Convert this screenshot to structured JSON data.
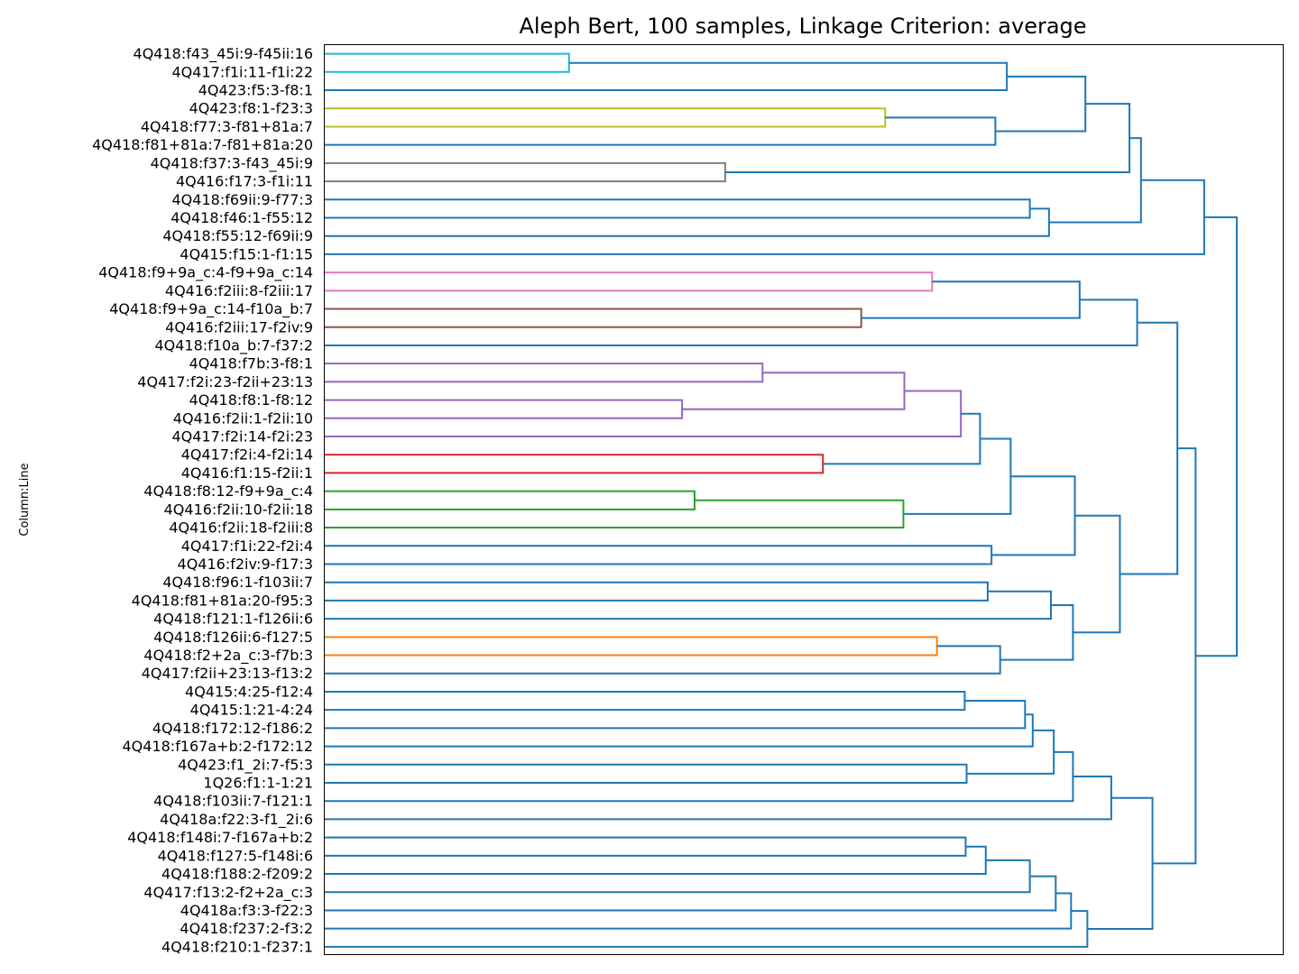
{
  "chart_data": {
    "type": "dendrogram",
    "title": "Aleph Bert, 100 samples, Linkage Criterion: average",
    "ylabel": "Column:Line",
    "xlabel": "",
    "orientation": "leaves-left, merges grow to the right",
    "distance_axis": {
      "visible": false,
      "range": [
        0,
        1
      ]
    },
    "grid": false,
    "above_threshold_color": "#1f77b4",
    "leaves": [
      "4Q418:f43_45i:9-f45ii:16",
      "4Q417:f1i:11-f1i:22",
      "4Q423:f5:3-f8:1",
      "4Q423:f8:1-f23:3",
      "4Q418:f77:3-f81+81a:7",
      "4Q418:f81+81a:7-f81+81a:20",
      "4Q418:f37:3-f43_45i:9",
      "4Q416:f17:3-f1i:11",
      "4Q418:f69ii:9-f77:3",
      "4Q418:f46:1-f55:12",
      "4Q418:f55:12-f69ii:9",
      "4Q415:f15:1-f1:15",
      "4Q418:f9+9a_c:4-f9+9a_c:14",
      "4Q416:f2iii:8-f2iii:17",
      "4Q418:f9+9a_c:14-f10a_b:7",
      "4Q416:f2iii:17-f2iv:9",
      "4Q418:f10a_b:7-f37:2",
      "4Q418:f7b:3-f8:1",
      "4Q417:f2i:23-f2ii+23:13",
      "4Q418:f8:1-f8:12",
      "4Q416:f2ii:1-f2ii:10",
      "4Q417:f2i:14-f2i:23",
      "4Q417:f2i:4-f2i:14",
      "4Q416:f1:15-f2ii:1",
      "4Q418:f8:12-f9+9a_c:4",
      "4Q416:f2ii:10-f2ii:18",
      "4Q416:f2ii:18-f2iii:8",
      "4Q417:f1i:22-f2i:4",
      "4Q416:f2iv:9-f17:3",
      "4Q418:f96:1-f103ii:7",
      "4Q418:f81+81a:20-f95:3",
      "4Q418:f121:1-f126ii:6",
      "4Q418:f126ii:6-f127:5",
      "4Q418:f2+2a_c:3-f7b:3",
      "4Q417:f2ii+23:13-f13:2",
      "4Q415:4:25-f12:4",
      "4Q415:1:21-4:24",
      "4Q418:f172:12-f186:2",
      "4Q418:f167a+b:2-f172:12",
      "4Q423:f1_2i:7-f5:3",
      "1Q26:f1:1-1:21",
      "4Q418:f103ii:7-f121:1",
      "4Q418a:f22:3-f1_2i:6",
      "4Q418:f148i:7-f167a+b:2",
      "4Q418:f127:5-f148i:6",
      "4Q418:f188:2-f209:2",
      "4Q417:f13:2-f2+2a_c:3",
      "4Q418a:f3:3-f22:3",
      "4Q418:f237:2-f3:2",
      "4Q418:f210:1-f237:1"
    ],
    "merges": [
      {
        "id": "n1",
        "a": 0,
        "b": 1,
        "height": 0.255,
        "color": "#17becf"
      },
      {
        "id": "n2",
        "a": "n1",
        "b": 2,
        "height": 0.712,
        "color": "#1f77b4"
      },
      {
        "id": "n3",
        "a": 3,
        "b": 4,
        "height": 0.585,
        "color": "#bcbd22"
      },
      {
        "id": "n4",
        "a": "n3",
        "b": 5,
        "height": 0.7,
        "color": "#1f77b4"
      },
      {
        "id": "n5",
        "a": "n2",
        "b": "n4",
        "height": 0.794,
        "color": "#1f77b4"
      },
      {
        "id": "n6",
        "a": 6,
        "b": 7,
        "height": 0.418,
        "color": "#7f7f7f"
      },
      {
        "id": "n7",
        "a": "n5",
        "b": "n6",
        "height": 0.84,
        "color": "#1f77b4"
      },
      {
        "id": "n8",
        "a": 8,
        "b": 9,
        "height": 0.736,
        "color": "#1f77b4"
      },
      {
        "id": "n9",
        "a": "n8",
        "b": 10,
        "height": 0.756,
        "color": "#1f77b4"
      },
      {
        "id": "n10",
        "a": "n7",
        "b": "n9",
        "height": 0.852,
        "color": "#1f77b4"
      },
      {
        "id": "n11",
        "a": "n10",
        "b": 11,
        "height": 0.918,
        "color": "#1f77b4"
      },
      {
        "id": "n12",
        "a": 12,
        "b": 13,
        "height": 0.634,
        "color": "#e377c2"
      },
      {
        "id": "n13",
        "a": 14,
        "b": 15,
        "height": 0.56,
        "color": "#8c564b"
      },
      {
        "id": "n14",
        "a": "n12",
        "b": "n13",
        "height": 0.788,
        "color": "#1f77b4"
      },
      {
        "id": "n15",
        "a": "n14",
        "b": 16,
        "height": 0.848,
        "color": "#1f77b4"
      },
      {
        "id": "n16",
        "a": 17,
        "b": 18,
        "height": 0.457,
        "color": "#9467bd"
      },
      {
        "id": "n17",
        "a": 19,
        "b": 20,
        "height": 0.373,
        "color": "#9467bd"
      },
      {
        "id": "n18",
        "a": "n16",
        "b": "n17",
        "height": 0.605,
        "color": "#9467bd"
      },
      {
        "id": "n19",
        "a": "n18",
        "b": 21,
        "height": 0.664,
        "color": "#9467bd"
      },
      {
        "id": "n20",
        "a": 22,
        "b": 23,
        "height": 0.52,
        "color": "#d62728"
      },
      {
        "id": "n21",
        "a": "n19",
        "b": "n20",
        "height": 0.684,
        "color": "#1f77b4"
      },
      {
        "id": "n22",
        "a": 24,
        "b": 25,
        "height": 0.386,
        "color": "#2ca02c"
      },
      {
        "id": "n23",
        "a": "n22",
        "b": 26,
        "height": 0.604,
        "color": "#2ca02c"
      },
      {
        "id": "n24",
        "a": "n21",
        "b": "n23",
        "height": 0.716,
        "color": "#1f77b4"
      },
      {
        "id": "n25",
        "a": 27,
        "b": 28,
        "height": 0.696,
        "color": "#1f77b4"
      },
      {
        "id": "n26",
        "a": "n24",
        "b": "n25",
        "height": 0.783,
        "color": "#1f77b4"
      },
      {
        "id": "n27",
        "a": 29,
        "b": 30,
        "height": 0.692,
        "color": "#1f77b4"
      },
      {
        "id": "n28",
        "a": "n27",
        "b": 31,
        "height": 0.758,
        "color": "#1f77b4"
      },
      {
        "id": "n29",
        "a": 32,
        "b": 33,
        "height": 0.639,
        "color": "#ff7f0e"
      },
      {
        "id": "n30",
        "a": "n29",
        "b": 34,
        "height": 0.705,
        "color": "#1f77b4"
      },
      {
        "id": "n31",
        "a": "n28",
        "b": "n30",
        "height": 0.781,
        "color": "#1f77b4"
      },
      {
        "id": "n32",
        "a": "n26",
        "b": "n31",
        "height": 0.83,
        "color": "#1f77b4"
      },
      {
        "id": "n33",
        "a": "n15",
        "b": "n32",
        "height": 0.89,
        "color": "#1f77b4"
      },
      {
        "id": "n34",
        "a": 35,
        "b": 36,
        "height": 0.668,
        "color": "#1f77b4"
      },
      {
        "id": "n35",
        "a": "n34",
        "b": 37,
        "height": 0.731,
        "color": "#1f77b4"
      },
      {
        "id": "n36",
        "a": "n35",
        "b": 38,
        "height": 0.739,
        "color": "#1f77b4"
      },
      {
        "id": "n37",
        "a": 39,
        "b": 40,
        "height": 0.67,
        "color": "#1f77b4"
      },
      {
        "id": "n38",
        "a": "n36",
        "b": "n37",
        "height": 0.761,
        "color": "#1f77b4"
      },
      {
        "id": "n39",
        "a": "n38",
        "b": 41,
        "height": 0.781,
        "color": "#1f77b4"
      },
      {
        "id": "n40",
        "a": "n39",
        "b": 42,
        "height": 0.821,
        "color": "#1f77b4"
      },
      {
        "id": "n41",
        "a": 43,
        "b": 44,
        "height": 0.669,
        "color": "#1f77b4"
      },
      {
        "id": "n42",
        "a": "n41",
        "b": 45,
        "height": 0.69,
        "color": "#1f77b4"
      },
      {
        "id": "n43",
        "a": "n42",
        "b": 46,
        "height": 0.736,
        "color": "#1f77b4"
      },
      {
        "id": "n44",
        "a": "n43",
        "b": 47,
        "height": 0.763,
        "color": "#1f77b4"
      },
      {
        "id": "n45",
        "a": "n44",
        "b": 48,
        "height": 0.779,
        "color": "#1f77b4"
      },
      {
        "id": "n46",
        "a": "n45",
        "b": 49,
        "height": 0.796,
        "color": "#1f77b4"
      },
      {
        "id": "n47",
        "a": "n40",
        "b": "n46",
        "height": 0.864,
        "color": "#1f77b4"
      },
      {
        "id": "n48",
        "a": "n33",
        "b": "n47",
        "height": 0.909,
        "color": "#1f77b4"
      },
      {
        "id": "n49",
        "a": "n11",
        "b": "n48",
        "height": 0.952,
        "color": "#1f77b4"
      }
    ]
  }
}
